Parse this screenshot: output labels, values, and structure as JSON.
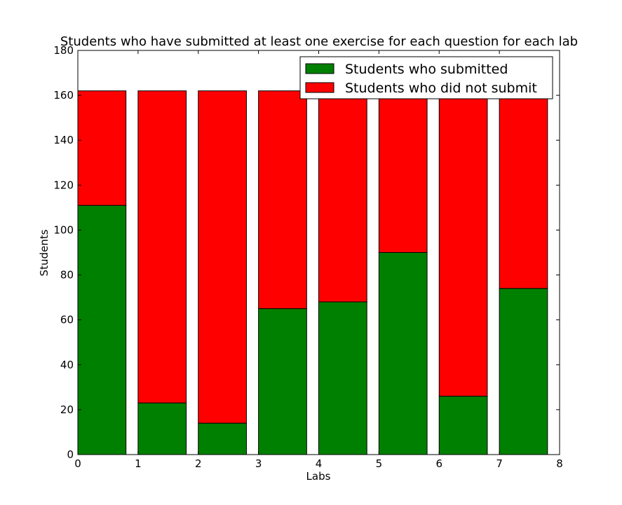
{
  "chart_data": {
    "type": "bar",
    "stacked": true,
    "title": "Students who have submitted at least one exercise for each question for each lab",
    "xlabel": "Labs",
    "ylabel": "Students",
    "xlim": [
      0,
      8
    ],
    "ylim": [
      0,
      180
    ],
    "x": [
      0,
      1,
      2,
      3,
      4,
      5,
      6,
      7
    ],
    "bar_width": 0.8,
    "xticks": [
      "0",
      "1",
      "2",
      "3",
      "4",
      "5",
      "6",
      "7",
      "8"
    ],
    "yticks": [
      "0",
      "20",
      "40",
      "60",
      "80",
      "100",
      "120",
      "140",
      "160",
      "180"
    ],
    "grid": false,
    "legend_position": "top-right",
    "series": [
      {
        "name": "Students who submitted",
        "color": "#008000",
        "values": [
          111,
          23,
          14,
          65,
          68,
          90,
          26,
          74
        ]
      },
      {
        "name": "Students who did not submit",
        "color": "#ff0000",
        "values": [
          51,
          139,
          148,
          97,
          94,
          72,
          136,
          88
        ]
      }
    ]
  }
}
